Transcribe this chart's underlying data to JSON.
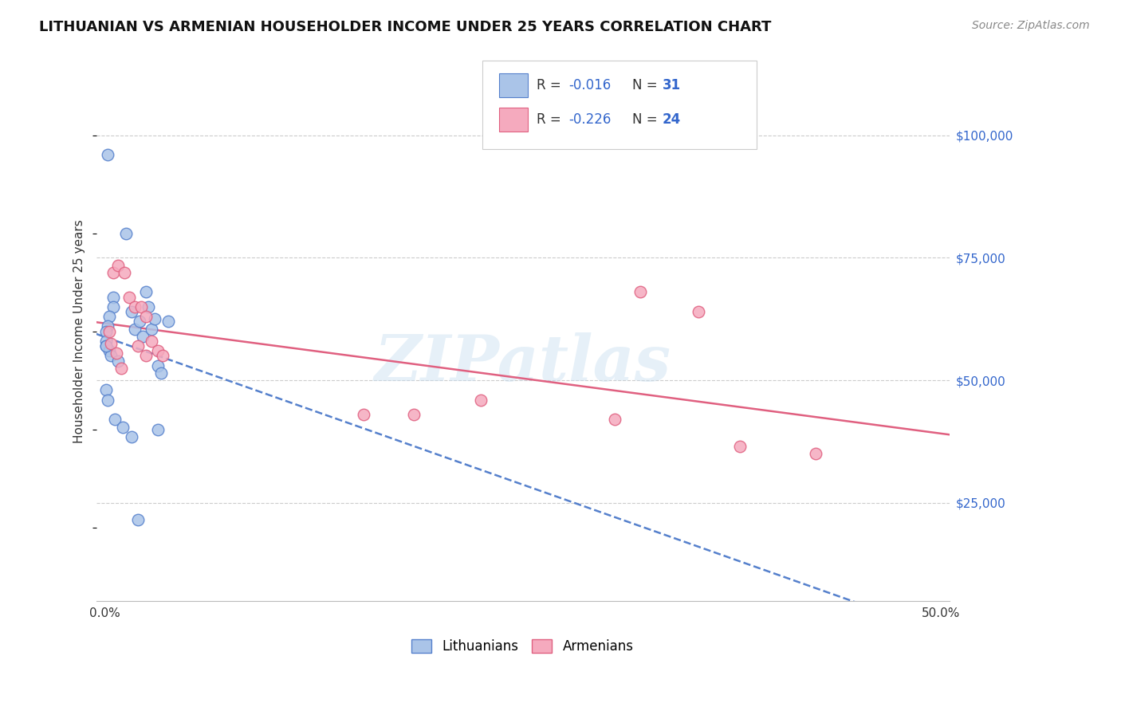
{
  "title": "LITHUANIAN VS ARMENIAN HOUSEHOLDER INCOME UNDER 25 YEARS CORRELATION CHART",
  "source": "Source: ZipAtlas.com",
  "ylabel": "Householder Income Under 25 years",
  "xlim": [
    -0.005,
    0.505
  ],
  "ylim": [
    5000,
    115000
  ],
  "ylabel_vals": [
    25000,
    50000,
    75000,
    100000
  ],
  "ylabel_ticks": [
    "$25,000",
    "$50,000",
    "$75,000",
    "$100,000"
  ],
  "xlabel_vals": [
    0.0,
    0.5
  ],
  "xlabel_ticks": [
    "0.0%",
    "50.0%"
  ],
  "lit_color": "#aac4e8",
  "arm_color": "#f5aabe",
  "lit_line_color": "#5580cc",
  "arm_line_color": "#e06080",
  "lit_R": "-0.016",
  "lit_N": "31",
  "arm_R": "-0.226",
  "arm_N": "24",
  "lit_x": [
    0.002,
    0.013,
    0.025,
    0.005,
    0.005,
    0.003,
    0.002,
    0.001,
    0.001,
    0.001,
    0.003,
    0.004,
    0.008,
    0.016,
    0.018,
    0.021,
    0.023,
    0.026,
    0.028,
    0.03,
    0.032,
    0.034,
    0.001,
    0.002,
    0.006,
    0.011,
    0.016,
    0.02,
    0.032,
    0.038,
    0.001
  ],
  "lit_y": [
    96000,
    80000,
    68000,
    67000,
    65000,
    63000,
    61000,
    60000,
    58000,
    57000,
    56000,
    55000,
    54000,
    64000,
    60500,
    62000,
    59000,
    65000,
    60500,
    62500,
    53000,
    51500,
    48000,
    46000,
    42000,
    40500,
    38500,
    21500,
    40000,
    62000,
    57000
  ],
  "arm_x": [
    0.005,
    0.008,
    0.012,
    0.015,
    0.018,
    0.022,
    0.025,
    0.028,
    0.032,
    0.035,
    0.003,
    0.004,
    0.007,
    0.01,
    0.02,
    0.025,
    0.155,
    0.185,
    0.225,
    0.305,
    0.32,
    0.355,
    0.38,
    0.425
  ],
  "arm_y": [
    72000,
    73500,
    72000,
    67000,
    65000,
    65000,
    63000,
    58000,
    56000,
    55000,
    60000,
    57500,
    55500,
    52500,
    57000,
    55000,
    43000,
    43000,
    46000,
    42000,
    68000,
    64000,
    36500,
    35000
  ],
  "marker_size": 110,
  "line_width": 1.8,
  "background_color": "#ffffff",
  "grid_color": "#cccccc",
  "title_fontsize": 13,
  "tick_fontsize": 11,
  "source_fontsize": 10,
  "legend_fontsize": 12,
  "ylabel_fontsize": 11,
  "yval_label_color": "#3366cc",
  "watermark_text": "ZIPatlas"
}
